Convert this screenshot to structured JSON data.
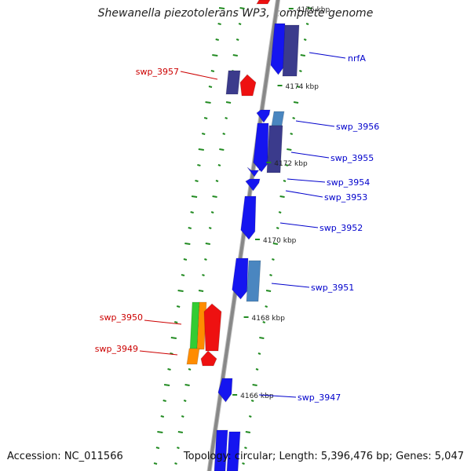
{
  "title": "Shewanella piezotolerans WP3, complete genome",
  "accession": "Accession: NC_011566",
  "summary": "Topology: circular; Length: 5,396,476 bp; Genes: 5,047",
  "colors": {
    "backbone": "#888888",
    "gc_tick": "#228b22",
    "label_forward": "#0000cc",
    "label_reverse": "#cc0000",
    "gene_blue": "#1515f0",
    "gene_navy": "#3b3b8c",
    "gene_steel": "#4a86c0",
    "gene_red": "#ee1111",
    "gene_green": "#33cc33",
    "gene_orange": "#ff8c00"
  },
  "kbp_ticks": [
    "4176 kbp",
    "4174 kbp",
    "4172 kbp",
    "4170 kbp",
    "4168 kbp",
    "4166 kbp"
  ],
  "genes": [
    {
      "label": "nrfA",
      "strand": "forward"
    },
    {
      "label": "swp_3957",
      "strand": "reverse"
    },
    {
      "label": "swp_3956",
      "strand": "forward"
    },
    {
      "label": "swp_3955",
      "strand": "forward"
    },
    {
      "label": "swp_3954",
      "strand": "forward"
    },
    {
      "label": "swp_3953",
      "strand": "forward"
    },
    {
      "label": "swp_3952",
      "strand": "forward"
    },
    {
      "label": "swp_3951",
      "strand": "forward"
    },
    {
      "label": "swp_3950",
      "strand": "reverse"
    },
    {
      "label": "swp_3949",
      "strand": "reverse"
    },
    {
      "label": "swp_3947",
      "strand": "forward"
    }
  ]
}
